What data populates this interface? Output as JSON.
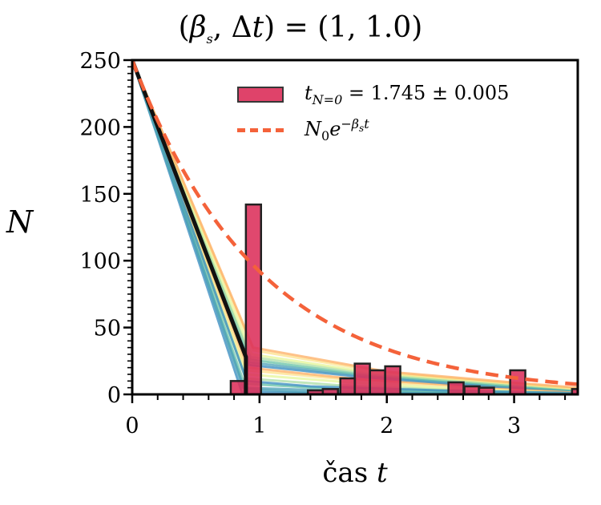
{
  "chart_data": {
    "type": "bar+line",
    "title": {
      "prefix": "(",
      "beta": "β",
      "beta_sub": "s",
      "sep": ", Δ",
      "t": "t",
      "rest": ") = (1, 1.0)"
    },
    "xlabel": {
      "text": "čas ",
      "var": "t"
    },
    "ylabel": "N",
    "xlim": [
      0,
      3.5
    ],
    "ylim": [
      0,
      250
    ],
    "xticks": [
      "0",
      "1",
      "2",
      "3"
    ],
    "yticks": [
      "0",
      "50",
      "100",
      "150",
      "200",
      "250"
    ],
    "colors": {
      "hist": "#dc2f5a",
      "exp": "#f4623a",
      "mean": "#111111",
      "sims": [
        "#3288bd",
        "#4aa0b5",
        "#66c2a5",
        "#abdda4",
        "#e6f598",
        "#fee08b",
        "#fdae61"
      ]
    },
    "legend": {
      "placement": "top-right",
      "entries": [
        {
          "var": "t",
          "sub": "N=0",
          "text": " = 1.745 ± 0.005"
        },
        {
          "var": "N",
          "sub": "0",
          "base": "e",
          "sup": "−β",
          "sup_sub": "s",
          "sup_t": "t"
        }
      ]
    },
    "histogram": {
      "bin_width": 0.119,
      "bins": [
        {
          "left": 0.774,
          "count": 10
        },
        {
          "left": 0.893,
          "count": 142
        },
        {
          "left": 1.38,
          "count": 3
        },
        {
          "left": 1.497,
          "count": 4
        },
        {
          "left": 1.635,
          "count": 12
        },
        {
          "left": 1.748,
          "count": 23
        },
        {
          "left": 1.868,
          "count": 18
        },
        {
          "left": 1.987,
          "count": 21
        },
        {
          "left": 2.484,
          "count": 9
        },
        {
          "left": 2.61,
          "count": 6
        },
        {
          "left": 2.723,
          "count": 5
        },
        {
          "left": 2.969,
          "count": 18
        },
        {
          "left": 3.455,
          "count": 4
        }
      ]
    },
    "exponential": {
      "N0": 250,
      "beta": 1
    },
    "mean_line": [
      [
        0,
        250
      ],
      [
        0.893,
        28
      ],
      [
        0.893,
        0
      ]
    ],
    "simulations": [
      [
        [
          0,
          250
        ],
        [
          0.86,
          2
        ],
        [
          1.5,
          1
        ],
        [
          2.5,
          0
        ],
        [
          3.5,
          0
        ]
      ],
      [
        [
          0,
          250
        ],
        [
          0.87,
          5
        ],
        [
          1.5,
          3
        ],
        [
          2.5,
          1
        ],
        [
          3.5,
          0
        ]
      ],
      [
        [
          0,
          250
        ],
        [
          0.88,
          8
        ],
        [
          1.6,
          4
        ],
        [
          2.5,
          2
        ],
        [
          3.5,
          1
        ]
      ],
      [
        [
          0,
          250
        ],
        [
          0.89,
          12
        ],
        [
          1.6,
          7
        ],
        [
          2.6,
          3
        ],
        [
          3.5,
          1
        ]
      ],
      [
        [
          0,
          250
        ],
        [
          0.9,
          15
        ],
        [
          1.7,
          9
        ],
        [
          2.6,
          4
        ],
        [
          3.5,
          2
        ]
      ],
      [
        [
          0,
          250
        ],
        [
          0.9,
          18
        ],
        [
          1.7,
          11
        ],
        [
          2.7,
          5
        ],
        [
          3.5,
          2
        ]
      ],
      [
        [
          0,
          250
        ],
        [
          0.91,
          20
        ],
        [
          1.7,
          12
        ],
        [
          2.7,
          6
        ],
        [
          3.5,
          2
        ]
      ],
      [
        [
          0,
          250
        ],
        [
          0.92,
          22
        ],
        [
          1.8,
          13
        ],
        [
          2.8,
          6
        ],
        [
          3.5,
          3
        ]
      ],
      [
        [
          0,
          250
        ],
        [
          0.92,
          24
        ],
        [
          1.8,
          14
        ],
        [
          2.8,
          7
        ],
        [
          3.5,
          3
        ]
      ],
      [
        [
          0,
          250
        ],
        [
          0.93,
          26
        ],
        [
          1.8,
          15
        ],
        [
          2.9,
          7
        ],
        [
          3.5,
          3
        ]
      ],
      [
        [
          0,
          250
        ],
        [
          0.93,
          28
        ],
        [
          1.9,
          15
        ],
        [
          3.0,
          7
        ],
        [
          3.5,
          4
        ]
      ],
      [
        [
          0,
          250
        ],
        [
          0.94,
          30
        ],
        [
          1.9,
          16
        ],
        [
          3.0,
          8
        ],
        [
          3.5,
          4
        ]
      ],
      [
        [
          0,
          250
        ],
        [
          0.95,
          33
        ],
        [
          2.0,
          16
        ],
        [
          3.0,
          8
        ],
        [
          3.5,
          4
        ]
      ],
      [
        [
          0,
          250
        ],
        [
          0.95,
          35
        ],
        [
          2.0,
          17
        ],
        [
          3.1,
          8
        ],
        [
          3.5,
          5
        ]
      ],
      [
        [
          0,
          250
        ],
        [
          0.9,
          10
        ],
        [
          1.4,
          6
        ],
        [
          2.4,
          3
        ],
        [
          3.5,
          1
        ]
      ],
      [
        [
          0,
          250
        ],
        [
          0.88,
          4
        ],
        [
          1.3,
          2
        ],
        [
          2.2,
          1
        ],
        [
          3.5,
          0
        ]
      ]
    ]
  }
}
